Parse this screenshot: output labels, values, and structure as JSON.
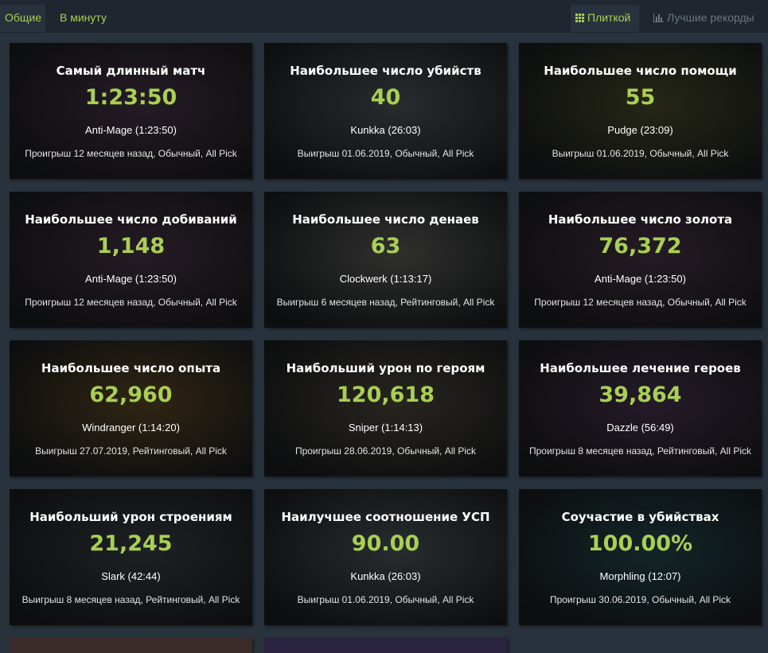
{
  "tabs": {
    "left": [
      {
        "label": "Общие",
        "active": true
      },
      {
        "label": "В минуту",
        "active": false
      }
    ],
    "right": [
      {
        "label": "Плиткой",
        "icon": "grid-icon",
        "active": true
      },
      {
        "label": "Лучшие рекорды",
        "icon": "bar-chart-icon",
        "active": false
      }
    ]
  },
  "colors": {
    "accent": "#a9cf54",
    "background": "#27323c",
    "header": "#1f2630"
  },
  "cards": [
    {
      "title": "Самый длинный матч",
      "value": "1:23:50",
      "hero": "Anti-Mage (1:23:50)",
      "meta": "Проигрыш 12 месяцев назад, Обычный, All Pick",
      "bg": "#3a2a3a"
    },
    {
      "title": "Наибольшее число убийств",
      "value": "40",
      "hero": "Kunkka (26:03)",
      "meta": "Выигрыш 01.06.2019, Обычный, All Pick",
      "bg": "#3f4548"
    },
    {
      "title": "Наибольшее число помощи",
      "value": "55",
      "hero": "Pudge (23:09)",
      "meta": "Выигрыш 01.06.2019, Обычный, All Pick",
      "bg": "#3b3d24"
    },
    {
      "title": "Наибольшее число добиваний",
      "value": "1,148",
      "hero": "Anti-Mage (1:23:50)",
      "meta": "Проигрыш 12 месяцев назад, Обычный, All Pick",
      "bg": "#3a2a3a"
    },
    {
      "title": "Наибольшее число денаев",
      "value": "63",
      "hero": "Clockwerk (1:13:17)",
      "meta": "Выигрыш 6 месяцев назад, Рейтинговый, All Pick",
      "bg": "#4a4a48"
    },
    {
      "title": "Наибольшее число золота",
      "value": "76,372",
      "hero": "Anti-Mage (1:23:50)",
      "meta": "Проигрыш 12 месяцев назад, Обычный, All Pick",
      "bg": "#3a2a3a"
    },
    {
      "title": "Наибольшее число опыта",
      "value": "62,960",
      "hero": "Windranger (1:14:20)",
      "meta": "Выигрыш 27.07.2019, Рейтинговый, All Pick",
      "bg": "#4a3a1e"
    },
    {
      "title": "Наибольший урон по героям",
      "value": "120,618",
      "hero": "Sniper (1:14:13)",
      "meta": "Проигрыш 28.06.2019, Обычный, All Pick",
      "bg": "#3e3a30"
    },
    {
      "title": "Наибольшее лечение героев",
      "value": "39,864",
      "hero": "Dazzle (56:49)",
      "meta": "Проигрыш 8 месяцев назад, Рейтинговый, All Pick",
      "bg": "#3a2a40"
    },
    {
      "title": "Наибольший урон строениям",
      "value": "21,245",
      "hero": "Slark (42:44)",
      "meta": "Выигрыш 8 месяцев назад, Рейтинговый, All Pick",
      "bg": "#2e3438"
    },
    {
      "title": "Наилучшее соотношение УСП",
      "value": "90.00",
      "hero": "Kunkka (26:03)",
      "meta": "Выигрыш 01.06.2019, Обычный, All Pick",
      "bg": "#3f4548"
    },
    {
      "title": "Соучастие в убийствах",
      "value": "100.00%",
      "hero": "Morphling (12:07)",
      "meta": "Проигрыш 30.06.2019, Обычный, All Pick",
      "bg": "#1e3a40"
    }
  ]
}
